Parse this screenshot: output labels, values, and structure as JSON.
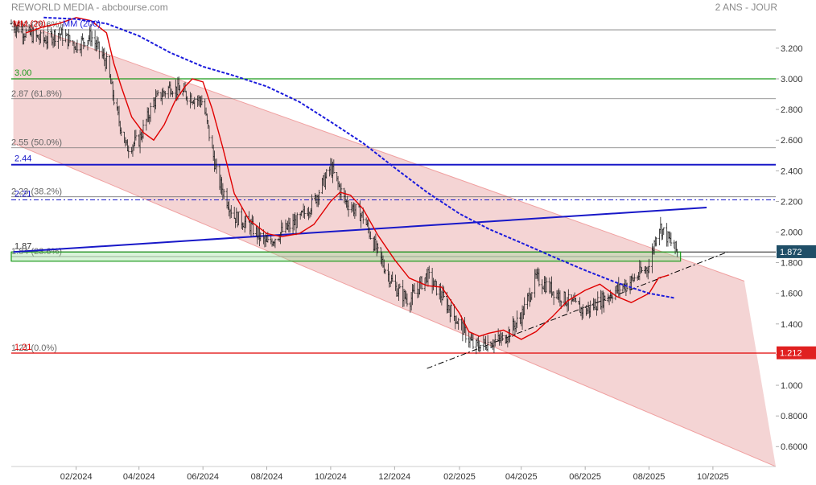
{
  "header": {
    "source": "REWORLD MEDIA - abcbourse.com",
    "period": "2 ANS - JOUR"
  },
  "chart_data": {
    "type": "candlestick",
    "title": "REWORLD MEDIA",
    "legend": [
      {
        "name": "MM (20)",
        "color": "#e00000"
      },
      {
        "name": "MM (200)",
        "color": "#1a1adc"
      }
    ],
    "y_axis": {
      "side": "right",
      "ticks": [
        3.2,
        3.0,
        2.8,
        2.6,
        2.4,
        2.2,
        2.0,
        1.8,
        1.6,
        1.4,
        1.2,
        1.0,
        0.8,
        0.6
      ],
      "tick_labels": [
        "3.200",
        "3.000",
        "2.800",
        "2.600",
        "2.400",
        "2.200",
        "2.000",
        "1.800",
        "1.600",
        "1.400",
        "1.200",
        "1.000",
        "0.8000",
        "0.6000"
      ],
      "range": [
        0.47,
        3.42
      ]
    },
    "x_axis": {
      "ticks": [
        "2024-02-01",
        "2024-04-01",
        "2024-06-01",
        "2024-08-01",
        "2024-10-01",
        "2024-12-01",
        "2025-02-01",
        "2025-04-01",
        "2025-06-01",
        "2025-08-01",
        "2025-10-01"
      ],
      "tick_labels": [
        "02/2024",
        "04/2024",
        "06/2024",
        "08/2024",
        "10/2024",
        "12/2024",
        "02/2025",
        "04/2025",
        "06/2025",
        "08/2025",
        "10/2025"
      ],
      "range": [
        "2023-12-01",
        "2025-11-30"
      ]
    },
    "price_markers": [
      {
        "value": 1.872,
        "label": "1.872",
        "color": "#1f4e67"
      },
      {
        "value": 1.212,
        "label": "1.212",
        "color": "#e02020"
      }
    ],
    "fibonacci_levels": [
      {
        "value": 3.32,
        "label": "3.32",
        "pct": "(78.6%)"
      },
      {
        "value": 2.87,
        "label": "2.87",
        "pct": "(61.8%)"
      },
      {
        "value": 2.55,
        "label": "2.55",
        "pct": "(50.0%)"
      },
      {
        "value": 2.23,
        "label": "2.23",
        "pct": "(38.2%)"
      },
      {
        "value": 1.84,
        "label": "1.84",
        "pct": "(23.6%)"
      },
      {
        "value": 1.21,
        "label": "1.21",
        "pct": "(0.0%)"
      }
    ],
    "horizontal_lines": [
      {
        "value": 3.0,
        "label": "3.00",
        "color": "#1a9a1a"
      },
      {
        "value": 2.44,
        "label": "2.44",
        "color": "#1818c8"
      },
      {
        "value": 2.21,
        "label": "2.21",
        "color": "#1818c8",
        "style": "dash-dot"
      },
      {
        "value": 1.87,
        "label": "1.87",
        "color": "#333333"
      },
      {
        "value": 1.21,
        "label": "1.21",
        "color": "#e00000"
      }
    ],
    "support_zone": {
      "from": 1.81,
      "to": 1.87,
      "color": "#1a9a1a"
    },
    "trend_channel": {
      "upper": [
        [
          "2023-12-03",
          3.38
        ],
        [
          "2025-10-31",
          1.68
        ]
      ],
      "lower": [
        [
          "2023-12-03",
          2.58
        ],
        [
          "2025-11-30",
          0.47
        ]
      ]
    },
    "trendlines": [
      {
        "points": [
          [
            "2023-12-03",
            1.87
          ],
          [
            "2025-09-25",
            2.16
          ]
        ],
        "color": "#1818c8",
        "style": "solid"
      },
      {
        "points": [
          [
            "2025-01-01",
            1.11
          ],
          [
            "2025-10-15",
            1.87
          ]
        ],
        "color": "#000000",
        "style": "dash-dot"
      }
    ],
    "series": [
      {
        "name": "MM (20)",
        "color": "#e00000",
        "x": [
          "2023-12-15",
          "2024-01-01",
          "2024-01-15",
          "2024-02-01",
          "2024-02-15",
          "2024-03-01",
          "2024-03-08",
          "2024-03-15",
          "2024-03-25",
          "2024-04-05",
          "2024-04-15",
          "2024-04-25",
          "2024-05-05",
          "2024-05-15",
          "2024-05-22",
          "2024-06-01",
          "2024-06-10",
          "2024-06-20",
          "2024-07-01",
          "2024-07-15",
          "2024-08-01",
          "2024-08-15",
          "2024-09-01",
          "2024-09-15",
          "2024-10-01",
          "2024-10-10",
          "2024-10-20",
          "2024-11-01",
          "2024-11-15",
          "2024-12-01",
          "2024-12-15",
          "2025-01-01",
          "2025-01-15",
          "2025-02-01",
          "2025-02-10",
          "2025-02-20",
          "2025-03-01",
          "2025-03-15",
          "2025-04-01",
          "2025-04-15",
          "2025-05-01",
          "2025-05-15",
          "2025-06-01",
          "2025-06-15",
          "2025-07-01",
          "2025-07-15",
          "2025-08-01",
          "2025-08-10",
          "2025-08-20"
        ],
        "y": [
          3.3,
          3.34,
          3.36,
          3.4,
          3.38,
          3.3,
          3.1,
          2.95,
          2.75,
          2.65,
          2.6,
          2.7,
          2.85,
          2.95,
          3.0,
          2.98,
          2.8,
          2.55,
          2.25,
          2.08,
          1.99,
          1.97,
          1.99,
          2.05,
          2.2,
          2.26,
          2.24,
          2.15,
          1.98,
          1.82,
          1.7,
          1.65,
          1.64,
          1.47,
          1.35,
          1.32,
          1.34,
          1.36,
          1.3,
          1.35,
          1.45,
          1.55,
          1.62,
          1.66,
          1.58,
          1.54,
          1.6,
          1.7,
          1.72
        ]
      },
      {
        "name": "MM (200)",
        "color": "#1a1adc",
        "x": [
          "2024-01-01",
          "2024-02-01",
          "2024-03-01",
          "2024-04-01",
          "2024-05-01",
          "2024-06-01",
          "2024-07-01",
          "2024-08-01",
          "2024-09-01",
          "2024-10-01",
          "2024-11-01",
          "2024-12-01",
          "2025-01-01",
          "2025-02-01",
          "2025-03-01",
          "2025-04-01",
          "2025-05-01",
          "2025-06-01",
          "2025-07-01",
          "2025-08-01",
          "2025-08-25"
        ],
        "y": [
          3.4,
          3.39,
          3.36,
          3.28,
          3.17,
          3.08,
          3.02,
          2.95,
          2.85,
          2.72,
          2.58,
          2.42,
          2.26,
          2.12,
          2.02,
          1.93,
          1.84,
          1.75,
          1.67,
          1.6,
          1.57
        ]
      },
      {
        "name": "price",
        "color": "#000000",
        "x": [
          "2023-12-01",
          "2023-12-15",
          "2024-01-01",
          "2024-01-15",
          "2024-02-01",
          "2024-02-15",
          "2024-03-01",
          "2024-03-10",
          "2024-03-20",
          "2024-04-01",
          "2024-04-15",
          "2024-05-01",
          "2024-05-15",
          "2024-06-01",
          "2024-06-15",
          "2024-07-01",
          "2024-07-15",
          "2024-08-01",
          "2024-08-15",
          "2024-09-01",
          "2024-09-15",
          "2024-10-01",
          "2024-10-15",
          "2024-11-01",
          "2024-11-15",
          "2024-12-01",
          "2024-12-15",
          "2025-01-01",
          "2025-01-15",
          "2025-02-01",
          "2025-02-15",
          "2025-03-01",
          "2025-03-15",
          "2025-04-01",
          "2025-04-15",
          "2025-05-01",
          "2025-05-15",
          "2025-06-01",
          "2025-06-15",
          "2025-07-01",
          "2025-07-15",
          "2025-08-01",
          "2025-08-10",
          "2025-08-20",
          "2025-08-28"
        ],
        "y": [
          3.36,
          3.3,
          3.25,
          3.3,
          3.22,
          3.28,
          3.1,
          2.8,
          2.55,
          2.6,
          2.85,
          2.95,
          2.9,
          2.85,
          2.35,
          2.1,
          2.05,
          1.92,
          2.0,
          2.08,
          2.2,
          2.42,
          2.2,
          2.1,
          1.86,
          1.64,
          1.55,
          1.72,
          1.58,
          1.4,
          1.25,
          1.28,
          1.3,
          1.45,
          1.7,
          1.62,
          1.55,
          1.48,
          1.55,
          1.62,
          1.68,
          1.78,
          2.05,
          1.95,
          1.87
        ]
      }
    ]
  }
}
